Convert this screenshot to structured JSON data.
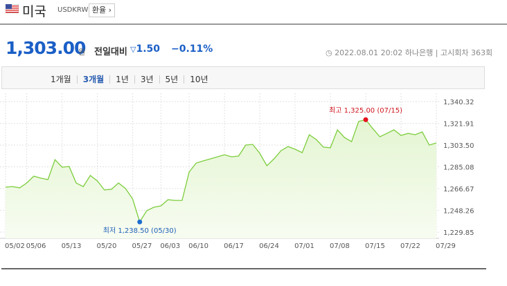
{
  "header": {
    "country": "미국",
    "code": "USDKRW",
    "button": "환율"
  },
  "quote": {
    "price": "1,303.00",
    "unit": "원",
    "change_label": "전일대비",
    "change": "1.50",
    "change_pct": "−0.11%",
    "timestamp": "2022.08.01 20:02",
    "bank": "하나은행",
    "round": "고시회차 363회"
  },
  "tabs": [
    "1개월",
    "3개월",
    "1년",
    "3년",
    "5년",
    "10년"
  ],
  "chart_data": {
    "type": "area",
    "categories": [
      "05/02",
      null,
      null,
      "05/06",
      null,
      null,
      null,
      null,
      "05/13",
      null,
      null,
      null,
      null,
      "05/20",
      null,
      null,
      null,
      null,
      "05/27",
      null,
      null,
      null,
      "06/03",
      null,
      null,
      null,
      "06/10",
      null,
      null,
      null,
      null,
      "06/17",
      null,
      null,
      null,
      null,
      "06/24",
      null,
      null,
      null,
      null,
      "07/01",
      null,
      null,
      null,
      null,
      "07/08",
      null,
      null,
      null,
      null,
      "07/15",
      null,
      null,
      null,
      null,
      "07/22",
      null,
      null,
      null,
      null,
      "07/29"
    ],
    "values": [
      1267.9,
      1268.4,
      1267.3,
      1271.4,
      1277.2,
      1275.5,
      1274.3,
      1291.2,
      1284.8,
      1285.4,
      1271.4,
      1268.4,
      1277.8,
      1273.1,
      1265.5,
      1266.1,
      1271.4,
      1266.7,
      1257.9,
      1238.5,
      1248.0,
      1250.9,
      1252.1,
      1257.3,
      1256.7,
      1256.7,
      1280.7,
      1288.3,
      1290.1,
      1291.8,
      1293.6,
      1295.3,
      1293.6,
      1294.2,
      1303.5,
      1304.1,
      1296.5,
      1286.0,
      1291.8,
      1298.8,
      1302.3,
      1300.0,
      1297.1,
      1312.3,
      1308.2,
      1301.8,
      1301.2,
      1316.4,
      1309.9,
      1306.4,
      1323.5,
      1325.0,
      1317.5,
      1310.5,
      1313.4,
      1316.4,
      1311.7,
      1313.4,
      1312.3,
      1314.6,
      1303.5,
      1305.3
    ],
    "color": "#7ccd3c",
    "ylim": [
      1224.6,
      1341.5
    ],
    "yticks": [
      {
        "value": 1229.85,
        "label": "1,229.85"
      },
      {
        "value": 1248.26,
        "label": "1,248.26"
      },
      {
        "value": 1266.67,
        "label": "1,266.67"
      },
      {
        "value": 1285.08,
        "label": "1,285.08"
      },
      {
        "value": 1303.5,
        "label": "1,303.50"
      },
      {
        "value": 1321.91,
        "label": "1,321.91"
      },
      {
        "value": 1340.32,
        "label": "1,340.32"
      }
    ],
    "grid": true,
    "annotations": {
      "max": "최고 1,325.00 (07/15)",
      "min": "최저 1,238.50 (05/30)"
    }
  }
}
